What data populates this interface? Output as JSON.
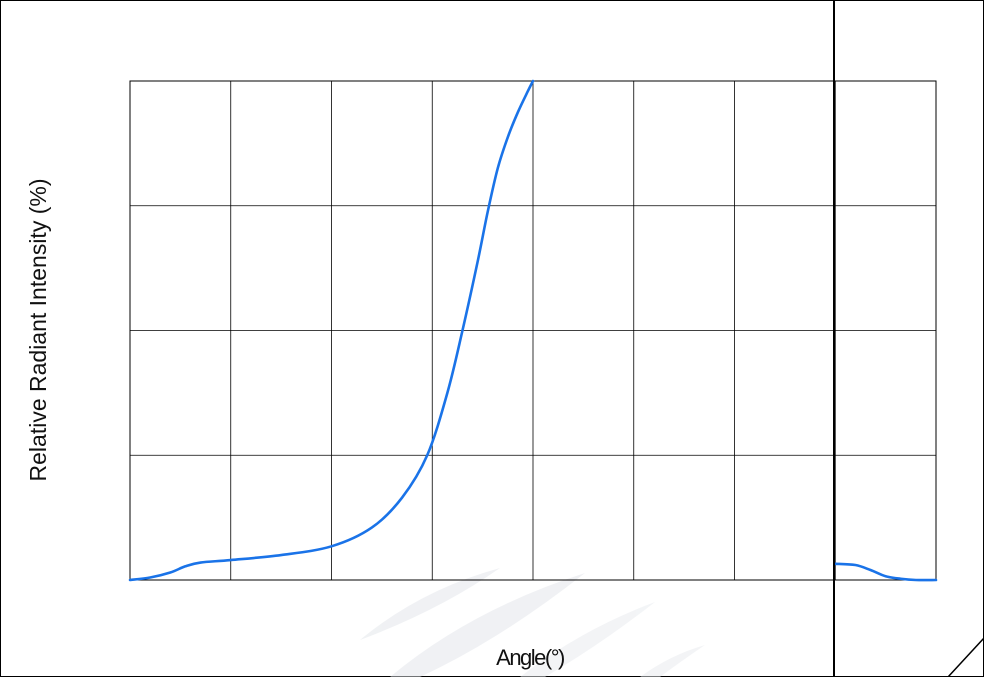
{
  "chart_data": {
    "type": "line",
    "title": "",
    "xlabel": "Angle(°)",
    "ylabel": "Relative Radiant Intensity (%)",
    "xlim": [
      0,
      8
    ],
    "ylim": [
      0,
      4
    ],
    "grid": true,
    "series": [
      {
        "color": "#1a73e8",
        "x": [
          0,
          0.2,
          0.4,
          0.55,
          0.7,
          1.0,
          1.5,
          2.0,
          2.4,
          2.7,
          2.95,
          3.15,
          3.3,
          3.45,
          3.55,
          3.65,
          3.75,
          3.85,
          3.95,
          4.0
        ],
        "y": [
          0,
          0.02,
          0.06,
          0.11,
          0.14,
          0.16,
          0.2,
          0.27,
          0.42,
          0.66,
          1.0,
          1.5,
          2.0,
          2.55,
          2.95,
          3.3,
          3.55,
          3.75,
          3.92,
          4.0
        ]
      },
      {
        "color": "#1a73e8",
        "x": [
          7.0,
          7.2,
          7.35,
          7.5,
          7.65,
          7.8,
          8.0
        ],
        "y": [
          0.13,
          0.12,
          0.08,
          0.03,
          0.01,
          0.0,
          0.0
        ]
      }
    ]
  }
}
